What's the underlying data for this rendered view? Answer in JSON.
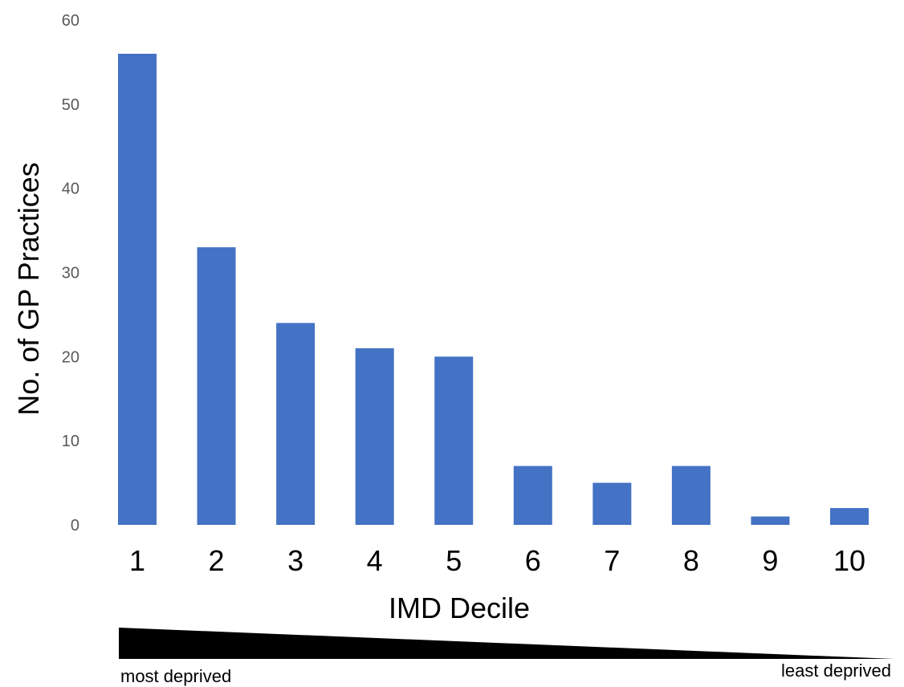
{
  "chart_data": {
    "type": "bar",
    "title": "",
    "xlabel": "IMD Decile",
    "ylabel": "No. of GP Practices",
    "categories": [
      "1",
      "2",
      "3",
      "4",
      "5",
      "6",
      "7",
      "8",
      "9",
      "10"
    ],
    "values": [
      56,
      33,
      24,
      21,
      20,
      7,
      5,
      7,
      1,
      2
    ],
    "ylim": [
      0,
      60
    ],
    "yticks": [
      "0",
      "10",
      "20",
      "30",
      "40",
      "50",
      "60"
    ],
    "grid": false,
    "bar_color": "#4472C4",
    "annotations": {
      "left": "most deprived",
      "right": "least deprived"
    }
  }
}
